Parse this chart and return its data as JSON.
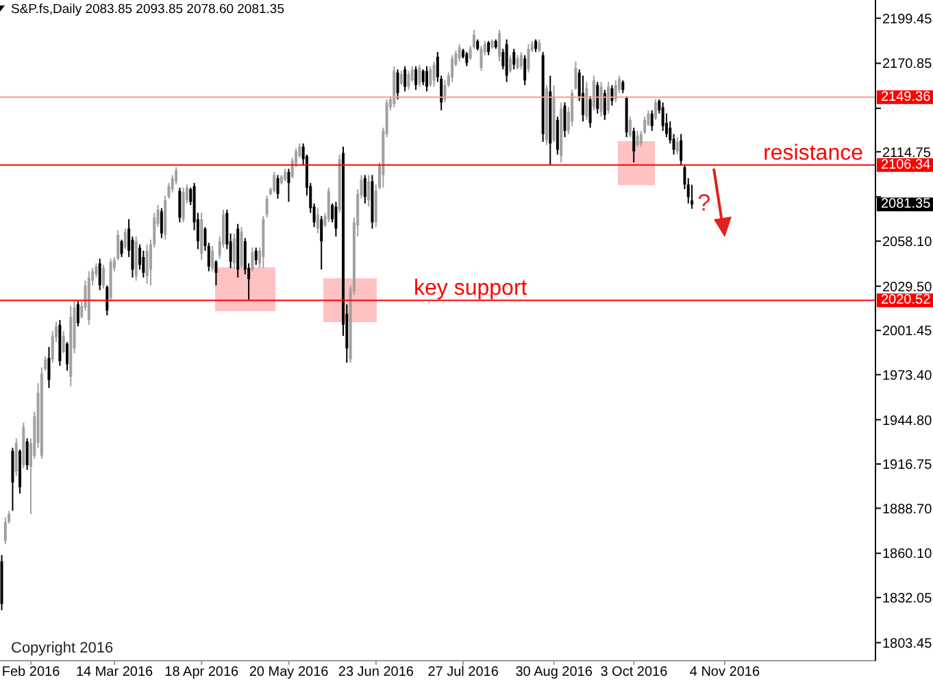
{
  "chart_data": {
    "type": "candlestick",
    "title": "S&P.fs,Daily 2083.85 2093.85 2078.60 2081.35",
    "categories": [
      null,
      null,
      null,
      null,
      null,
      null,
      null,
      null,
      "Feb 2016",
      null,
      null,
      null,
      null,
      null,
      null,
      null,
      null,
      null,
      null,
      null,
      null,
      null,
      null,
      null,
      null,
      null,
      null,
      null,
      null,
      null,
      null,
      "14 Mar 2016",
      null,
      null,
      null,
      null,
      null,
      null,
      null,
      null,
      null,
      null,
      null,
      null,
      null,
      null,
      null,
      null,
      null,
      null,
      null,
      null,
      null,
      null,
      null,
      "18 Apr 2016",
      null,
      null,
      null,
      null,
      null,
      null,
      null,
      null,
      null,
      null,
      null,
      null,
      null,
      null,
      null,
      null,
      null,
      null,
      null,
      null,
      null,
      null,
      null,
      "20 May 2016",
      null,
      null,
      null,
      null,
      null,
      null,
      null,
      null,
      null,
      null,
      null,
      null,
      null,
      null,
      null,
      null,
      null,
      null,
      null,
      null,
      null,
      null,
      null,
      "23 Jun 2016",
      null,
      null,
      null,
      null,
      null,
      null,
      null,
      null,
      null,
      null,
      null,
      null,
      null,
      null,
      null,
      null,
      null,
      null,
      null,
      null,
      null,
      null,
      null,
      "27 Jul 2016",
      null,
      null,
      null,
      null,
      null,
      null,
      null,
      null,
      null,
      null,
      null,
      null,
      null,
      null,
      null,
      null,
      null,
      null,
      null,
      null,
      null,
      null,
      null,
      null,
      "30 Aug 2016",
      null,
      null,
      null,
      null,
      null,
      null,
      null,
      null,
      null,
      null,
      null,
      null,
      null,
      null,
      null,
      null,
      null,
      null,
      null,
      null,
      null,
      "3 Oct 2016",
      null,
      null,
      null,
      null,
      null,
      null,
      null,
      null,
      null,
      null,
      null,
      null,
      null,
      null,
      null,
      null,
      null,
      null,
      null,
      null,
      null,
      null,
      null,
      null,
      "4 Nov 2016",
      null,
      null,
      null,
      null,
      null,
      null,
      null,
      null,
      null,
      null,
      null,
      null,
      null,
      null,
      null,
      null,
      null,
      null,
      null,
      null,
      null,
      null,
      null,
      null,
      null,
      null,
      null,
      null,
      null,
      null,
      null,
      null,
      null,
      null,
      null,
      null,
      null,
      null,
      null,
      null,
      null
    ],
    "ohlc": [
      [
        1855,
        1859,
        1824,
        1828
      ],
      [
        1868,
        1883,
        1866,
        1880
      ],
      [
        1880,
        1887,
        1879,
        1885
      ],
      [
        1925,
        1927,
        1887,
        1905
      ],
      [
        1912,
        1933,
        1909,
        1930
      ],
      [
        1925,
        1926,
        1898,
        1902
      ],
      [
        1916,
        1943,
        1914,
        1940
      ],
      [
        1931,
        1933,
        1913,
        1916
      ],
      [
        1915,
        1933,
        1885,
        1930
      ],
      [
        1922,
        1950,
        1920,
        1947
      ],
      [
        1930,
        1968,
        1927,
        1962
      ],
      [
        1922,
        1978,
        1920,
        1974
      ],
      [
        1977,
        1985,
        1976,
        1983
      ],
      [
        1984,
        1991,
        1965,
        1970
      ],
      [
        1983,
        2001,
        1981,
        1998
      ],
      [
        1997,
        2007,
        1994,
        2004
      ],
      [
        2005,
        2008,
        1979,
        1982
      ],
      [
        1988,
        2001,
        1987,
        1998
      ],
      [
        1993,
        1994,
        1976,
        1980
      ],
      [
        1972,
        2017,
        1966,
        2010
      ],
      [
        1990,
        2021,
        1987,
        2016
      ],
      [
        2018,
        2020,
        2004,
        2006
      ],
      [
        2010,
        2020,
        2009,
        2017
      ],
      [
        2016,
        2033,
        2014,
        2030
      ],
      [
        2008,
        2039,
        2005,
        2035
      ],
      [
        2033,
        2041,
        2030,
        2039
      ],
      [
        2037,
        2044,
        2035,
        2042
      ],
      [
        2044,
        2047,
        2027,
        2030
      ],
      [
        2030,
        2043,
        2028,
        2041
      ],
      [
        2029,
        2030,
        2011,
        2014
      ],
      [
        2022,
        2047,
        2020,
        2045
      ],
      [
        2041,
        2048,
        2039,
        2046
      ],
      [
        2047,
        2065,
        2046,
        2062
      ],
      [
        2058,
        2059,
        2048,
        2050
      ],
      [
        2054,
        2066,
        2053,
        2064
      ],
      [
        2066,
        2072,
        2048,
        2052
      ],
      [
        2059,
        2061,
        2035,
        2040
      ],
      [
        2036,
        2061,
        2033,
        2058
      ],
      [
        2054,
        2056,
        2040,
        2043
      ],
      [
        2048,
        2052,
        2035,
        2038
      ],
      [
        2036,
        2056,
        2031,
        2052
      ],
      [
        2040,
        2059,
        2030,
        2056
      ],
      [
        2056,
        2076,
        2054,
        2073
      ],
      [
        2069,
        2081,
        2067,
        2078
      ],
      [
        2077,
        2079,
        2060,
        2063
      ],
      [
        2062,
        2087,
        2059,
        2084
      ],
      [
        2086,
        2095,
        2085,
        2093
      ],
      [
        2091,
        2100,
        2089,
        2098
      ],
      [
        2096,
        2105,
        2094,
        2103
      ],
      [
        2090,
        2092,
        2070,
        2073
      ],
      [
        2072,
        2092,
        2070,
        2089
      ],
      [
        2084,
        2094,
        2082,
        2092
      ],
      [
        2091,
        2092,
        2081,
        2083
      ],
      [
        2093,
        2095,
        2065,
        2070
      ],
      [
        2072,
        2076,
        2053,
        2058
      ],
      [
        2050,
        2076,
        2046,
        2072
      ],
      [
        2066,
        2067,
        2052,
        2055
      ],
      [
        2055,
        2057,
        2039,
        2042
      ],
      [
        2041,
        2055,
        2039,
        2052
      ],
      [
        2045,
        2046,
        2030,
        2038
      ],
      [
        2049,
        2061,
        2047,
        2058
      ],
      [
        2056,
        2078,
        2054,
        2075
      ],
      [
        2076,
        2078,
        2053,
        2056
      ],
      [
        2058,
        2063,
        2041,
        2045
      ],
      [
        2044,
        2063,
        2041,
        2060
      ],
      [
        2066,
        2069,
        2035,
        2040
      ],
      [
        2042,
        2067,
        2041,
        2064
      ],
      [
        2058,
        2060,
        2037,
        2040
      ],
      [
        2041,
        2044,
        2021,
        2034
      ],
      [
        2040,
        2054,
        2039,
        2051
      ],
      [
        2052,
        2054,
        2043,
        2046
      ],
      [
        2044,
        2054,
        2041,
        2052
      ],
      [
        2048,
        2074,
        2041,
        2072
      ],
      [
        2075,
        2087,
        2073,
        2085
      ],
      [
        2088,
        2092,
        2087,
        2091
      ],
      [
        2090,
        2102,
        2089,
        2100
      ],
      [
        2098,
        2100,
        2085,
        2088
      ],
      [
        2095,
        2100,
        2094,
        2099
      ],
      [
        2097,
        2104,
        2096,
        2102
      ],
      [
        2102,
        2104,
        2083,
        2095
      ],
      [
        2099,
        2111,
        2098,
        2109
      ],
      [
        2107,
        2117,
        2105,
        2115
      ],
      [
        2112,
        2120,
        2111,
        2118
      ],
      [
        2118,
        2120,
        2106,
        2110
      ],
      [
        2112,
        2113,
        2087,
        2092
      ],
      [
        2093,
        2095,
        2076,
        2079
      ],
      [
        2080,
        2082,
        2067,
        2070
      ],
      [
        2066,
        2079,
        2063,
        2075
      ],
      [
        2072,
        2074,
        2040,
        2058
      ],
      [
        2068,
        2076,
        2067,
        2074
      ],
      [
        2072,
        2092,
        2070,
        2090
      ],
      [
        2081,
        2082,
        2070,
        2072
      ],
      [
        2080,
        2083,
        2061,
        2066
      ],
      [
        2078,
        2113,
        2076,
        2110
      ],
      [
        2114,
        2118,
        1998,
        2005
      ],
      [
        2012,
        2018,
        1981,
        1990
      ],
      [
        1983,
        2030,
        1981,
        2028
      ],
      [
        2026,
        2073,
        2024,
        2070
      ],
      [
        2068,
        2091,
        2061,
        2088
      ],
      [
        2087,
        2100,
        2085,
        2097
      ],
      [
        2098,
        2100,
        2082,
        2086
      ],
      [
        2084,
        2100,
        2080,
        2096
      ],
      [
        2096,
        2100,
        2066,
        2070
      ],
      [
        2070,
        2094,
        2067,
        2090
      ],
      [
        2092,
        2108,
        2091,
        2106
      ],
      [
        2100,
        2130,
        2092,
        2128
      ],
      [
        2126,
        2148,
        2124,
        2146
      ],
      [
        2143,
        2150,
        2141,
        2148
      ],
      [
        2145,
        2169,
        2143,
        2166
      ],
      [
        2165,
        2167,
        2148,
        2152
      ],
      [
        2158,
        2166,
        2157,
        2164
      ],
      [
        2167,
        2169,
        2153,
        2156
      ],
      [
        2156,
        2166,
        2154,
        2164
      ],
      [
        2160,
        2169,
        2159,
        2167
      ],
      [
        2167,
        2169,
        2154,
        2157
      ],
      [
        2158,
        2170,
        2156,
        2168
      ],
      [
        2166,
        2167,
        2157,
        2159
      ],
      [
        2166,
        2169,
        2153,
        2156
      ],
      [
        2157,
        2169,
        2156,
        2167
      ],
      [
        2160,
        2172,
        2156,
        2170
      ],
      [
        2175,
        2178,
        2159,
        2162
      ],
      [
        2161,
        2163,
        2141,
        2146
      ],
      [
        2148,
        2160,
        2146,
        2157
      ],
      [
        2157,
        2165,
        2156,
        2163
      ],
      [
        2162,
        2176,
        2159,
        2174
      ],
      [
        2170,
        2179,
        2169,
        2177
      ],
      [
        2174,
        2183,
        2172,
        2181
      ],
      [
        2179,
        2180,
        2174,
        2175
      ],
      [
        2177,
        2178,
        2169,
        2171
      ],
      [
        2174,
        2182,
        2173,
        2180
      ],
      [
        2181,
        2192,
        2180,
        2189
      ],
      [
        2185,
        2186,
        2179,
        2180
      ],
      [
        2168,
        2182,
        2166,
        2180
      ],
      [
        2178,
        2185,
        2176,
        2183
      ],
      [
        2184,
        2185,
        2176,
        2178
      ],
      [
        2181,
        2186,
        2180,
        2185
      ],
      [
        2185,
        2186,
        2180,
        2181
      ],
      [
        2175,
        2192,
        2172,
        2190
      ],
      [
        2178,
        2180,
        2167,
        2169
      ],
      [
        2183,
        2186,
        2159,
        2163
      ],
      [
        2166,
        2176,
        2165,
        2174
      ],
      [
        2178,
        2180,
        2167,
        2170
      ],
      [
        2168,
        2176,
        2167,
        2174
      ],
      [
        2169,
        2178,
        2167,
        2176
      ],
      [
        2174,
        2176,
        2157,
        2160
      ],
      [
        2167,
        2183,
        2165,
        2180
      ],
      [
        2179,
        2185,
        2178,
        2183
      ],
      [
        2185,
        2186,
        2178,
        2180
      ],
      [
        2179,
        2186,
        2178,
        2184
      ],
      [
        2176,
        2178,
        2121,
        2126
      ],
      [
        2122,
        2157,
        2119,
        2155
      ],
      [
        2153,
        2163,
        2106,
        2120
      ],
      [
        2122,
        2157,
        2121,
        2150
      ],
      [
        2135,
        2137,
        2113,
        2116
      ],
      [
        2112,
        2146,
        2108,
        2142
      ],
      [
        2144,
        2146,
        2124,
        2128
      ],
      [
        2128,
        2143,
        2126,
        2140
      ],
      [
        2134,
        2154,
        2131,
        2152
      ],
      [
        2155,
        2172,
        2154,
        2168
      ],
      [
        2165,
        2167,
        2147,
        2150
      ],
      [
        2152,
        2163,
        2134,
        2138
      ],
      [
        2137,
        2159,
        2135,
        2155
      ],
      [
        2148,
        2150,
        2130,
        2133
      ],
      [
        2143,
        2163,
        2141,
        2160
      ],
      [
        2157,
        2159,
        2139,
        2142
      ],
      [
        2140,
        2159,
        2137,
        2156
      ],
      [
        2152,
        2154,
        2135,
        2138
      ],
      [
        2141,
        2159,
        2139,
        2156
      ],
      [
        2155,
        2157,
        2144,
        2147
      ],
      [
        2148,
        2160,
        2146,
        2157
      ],
      [
        2154,
        2163,
        2152,
        2161
      ],
      [
        2159,
        2160,
        2152,
        2154
      ],
      [
        2149,
        2150,
        2124,
        2127
      ],
      [
        2125,
        2137,
        2124,
        2135
      ],
      [
        2128,
        2130,
        2108,
        2115
      ],
      [
        2119,
        2128,
        2118,
        2125
      ],
      [
        2120,
        2128,
        2118,
        2126
      ],
      [
        2127,
        2137,
        2126,
        2135
      ],
      [
        2132,
        2141,
        2131,
        2139
      ],
      [
        2139,
        2141,
        2128,
        2131
      ],
      [
        2136,
        2148,
        2135,
        2146
      ],
      [
        2147,
        2148,
        2139,
        2141
      ],
      [
        2143,
        2146,
        2128,
        2131
      ],
      [
        2133,
        2139,
        2124,
        2126
      ],
      [
        2130,
        2134,
        2120,
        2122
      ],
      [
        2123,
        2126,
        2113,
        2116
      ],
      [
        2115,
        2124,
        2113,
        2121
      ],
      [
        2122,
        2126,
        2106,
        2109
      ],
      [
        2105,
        2106,
        2091,
        2094
      ],
      [
        2094,
        2098,
        2082,
        2086
      ],
      [
        2083.85,
        2093.85,
        2078.6,
        2081.35
      ],
      null,
      null,
      null,
      null,
      null,
      null,
      null,
      null,
      null,
      null,
      null,
      null,
      null,
      null,
      null,
      null,
      null,
      null,
      null,
      null,
      null,
      null,
      null,
      null,
      null,
      null,
      null,
      null,
      null,
      null,
      null,
      null,
      null,
      null,
      null,
      null,
      null,
      null,
      null,
      null,
      null,
      null,
      null,
      null,
      null,
      null,
      null,
      null,
      null,
      null
    ],
    "colors": [
      "#000000",
      "#a0a0a0",
      "#a0a0a0",
      "#000000",
      "#a0a0a0",
      "#000000",
      "#a0a0a0",
      "#000000",
      "#a0a0a0",
      "#a0a0a0",
      "#a0a0a0",
      "#a0a0a0",
      "#a0a0a0",
      "#000000",
      "#a0a0a0",
      "#a0a0a0",
      "#000000",
      "#a0a0a0",
      "#000000",
      "#a0a0a0",
      "#a0a0a0",
      "#000000",
      "#a0a0a0",
      "#a0a0a0",
      "#a0a0a0",
      "#a0a0a0",
      "#a0a0a0",
      "#000000",
      "#a0a0a0",
      "#000000",
      "#a0a0a0",
      "#a0a0a0",
      "#a0a0a0",
      "#000000",
      "#a0a0a0",
      "#000000",
      "#000000",
      "#a0a0a0",
      "#000000",
      "#000000",
      "#a0a0a0",
      "#a0a0a0",
      "#a0a0a0",
      "#a0a0a0",
      "#000000",
      "#a0a0a0",
      "#a0a0a0",
      "#a0a0a0",
      "#a0a0a0",
      "#000000",
      "#a0a0a0",
      "#a0a0a0",
      "#000000",
      "#000000",
      "#000000",
      "#a0a0a0",
      "#000000",
      "#000000",
      "#a0a0a0",
      "#000000",
      "#a0a0a0",
      "#a0a0a0",
      "#000000",
      "#000000",
      "#a0a0a0",
      "#000000",
      "#a0a0a0",
      "#000000",
      "#000000",
      "#a0a0a0",
      "#000000",
      "#a0a0a0",
      "#a0a0a0",
      "#a0a0a0",
      "#a0a0a0",
      "#a0a0a0",
      "#000000",
      "#a0a0a0",
      "#a0a0a0",
      "#000000",
      "#a0a0a0",
      "#a0a0a0",
      "#a0a0a0",
      "#000000",
      "#000000",
      "#000000",
      "#000000",
      "#a0a0a0",
      "#000000",
      "#a0a0a0",
      "#a0a0a0",
      "#000000",
      "#000000",
      "#a0a0a0",
      "#000000",
      "#000000",
      "#a0a0a0",
      "#a0a0a0",
      "#a0a0a0",
      "#a0a0a0",
      "#000000",
      "#a0a0a0",
      "#000000",
      "#a0a0a0",
      "#a0a0a0",
      "#a0a0a0",
      "#a0a0a0",
      "#a0a0a0",
      "#a0a0a0",
      "#000000",
      "#a0a0a0",
      "#000000",
      "#a0a0a0",
      "#a0a0a0",
      "#000000",
      "#a0a0a0",
      "#000000",
      "#000000",
      "#a0a0a0",
      "#a0a0a0",
      "#000000",
      "#000000",
      "#a0a0a0",
      "#a0a0a0",
      "#a0a0a0",
      "#a0a0a0",
      "#a0a0a0",
      "#000000",
      "#000000",
      "#a0a0a0",
      "#a0a0a0",
      "#000000",
      "#a0a0a0",
      "#a0a0a0",
      "#000000",
      "#a0a0a0",
      "#000000",
      "#a0a0a0",
      "#000000",
      "#000000",
      "#a0a0a0",
      "#000000",
      "#a0a0a0",
      "#a0a0a0",
      "#000000",
      "#a0a0a0",
      "#a0a0a0",
      "#000000",
      "#a0a0a0",
      "#000000",
      "#a0a0a0",
      "#000000",
      "#a0a0a0",
      "#000000",
      "#a0a0a0",
      "#000000",
      "#a0a0a0",
      "#a0a0a0",
      "#a0a0a0",
      "#000000",
      "#000000",
      "#a0a0a0",
      "#000000",
      "#a0a0a0",
      "#000000",
      "#a0a0a0",
      "#000000",
      "#a0a0a0",
      "#000000",
      "#a0a0a0",
      "#a0a0a0",
      "#000000",
      "#000000",
      "#a0a0a0",
      "#000000",
      "#a0a0a0",
      "#a0a0a0",
      "#a0a0a0",
      "#a0a0a0",
      "#000000",
      "#a0a0a0",
      "#000000",
      "#000000",
      "#000000",
      "#000000",
      "#000000",
      "#a0a0a0",
      "#000000",
      "#000000",
      "#000000",
      "#000000",
      null,
      null,
      null,
      null,
      null,
      null,
      null,
      null,
      null,
      null,
      null,
      null,
      null,
      null,
      null,
      null,
      null,
      null,
      null,
      null,
      null,
      null,
      null,
      null,
      null,
      null,
      null,
      null,
      null,
      null,
      null,
      null,
      null,
      null,
      null,
      null,
      null,
      null,
      null,
      null,
      null,
      null,
      null,
      null,
      null,
      null,
      null,
      null,
      null,
      null
    ],
    "ylim": [
      1792,
      2211
    ],
    "yticks": [
      2199.45,
      2170.85,
      {
        "value": 2142.3,
        "label": null
      },
      2114.75,
      {
        "value": 2086.15,
        "label": null
      },
      {
        "value": 2058.1,
        "label": "2058.10"
      },
      {
        "value": 2029.5,
        "label": "2029.50"
      },
      2001.45,
      {
        "value": 1973.4,
        "label": "1973.40"
      },
      {
        "value": 1944.8,
        "label": "1944.80"
      },
      1916.75,
      {
        "value": 1888.7,
        "label": "1888.70"
      },
      {
        "value": 1860.1,
        "label": "1860.10"
      },
      1832.05,
      1803.45
    ],
    "ref_lines": [
      {
        "axis": "y",
        "value": 2149.36,
        "color": "#ff9999"
      },
      {
        "axis": "y",
        "value": 2106.34,
        "label": "resistance",
        "color": "#ff0000"
      },
      {
        "axis": "y",
        "value": 2020.52,
        "label": "key support",
        "color": "#ff0000"
      }
    ],
    "annotations": [
      "2149.36",
      "2106.34",
      "2020.52",
      "2081.35",
      "?",
      "Copyright 2016"
    ]
  }
}
